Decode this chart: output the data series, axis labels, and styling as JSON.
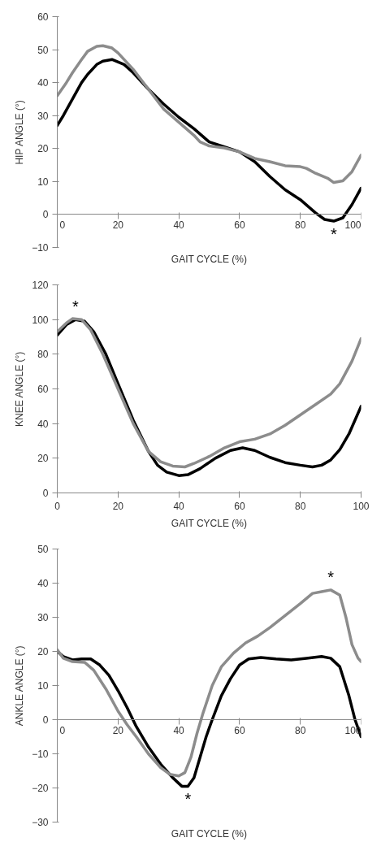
{
  "chart_data": [
    {
      "type": "line",
      "xlabel": "GAIT CYCLE (%)",
      "ylabel": "HIP ANGLE (°)",
      "xlim": [
        0,
        100
      ],
      "xticks": [
        0,
        20,
        40,
        60,
        80,
        100
      ],
      "ylim": [
        -10,
        60
      ],
      "yticks": [
        -10,
        0,
        10,
        20,
        30,
        40,
        50,
        60
      ],
      "series": [
        {
          "color": "#000000",
          "x": [
            0,
            2,
            5,
            8,
            10,
            13,
            15,
            18,
            22,
            25,
            30,
            35,
            40,
            45,
            50,
            55,
            60,
            65,
            70,
            75,
            80,
            85,
            88,
            91,
            94,
            97,
            100
          ],
          "values": [
            27,
            30,
            35,
            40,
            42.5,
            45.5,
            46.5,
            47,
            45.5,
            43,
            38,
            33.5,
            29.5,
            26,
            22,
            20.5,
            19,
            16,
            11.5,
            7.5,
            4.5,
            0.5,
            -1.5,
            -2,
            -1,
            3,
            8
          ]
        },
        {
          "color": "#8c8c8c",
          "x": [
            0,
            3,
            5,
            8,
            10,
            13,
            15,
            18,
            20,
            25,
            30,
            35,
            40,
            45,
            47,
            50,
            55,
            60,
            65,
            70,
            75,
            80,
            82,
            85,
            89,
            91,
            94,
            97,
            100
          ],
          "values": [
            36,
            40,
            43,
            47,
            49.5,
            51,
            51.2,
            50.5,
            49,
            44,
            38,
            32,
            28,
            24,
            22,
            20.8,
            20.2,
            19,
            17,
            16,
            14.8,
            14.5,
            14,
            12.5,
            11,
            9.7,
            10.2,
            13,
            18
          ]
        }
      ],
      "annotations": [
        {
          "text": "*",
          "x": 91,
          "y": -2
        }
      ]
    },
    {
      "type": "line",
      "xlabel": "GAIT CYCLE (%)",
      "ylabel": "KNEE ANGLE (°)",
      "xlim": [
        0,
        100
      ],
      "xticks": [
        0,
        20,
        40,
        60,
        80,
        100
      ],
      "ylim": [
        0,
        120
      ],
      "yticks": [
        0,
        20,
        40,
        60,
        80,
        100,
        120
      ],
      "series": [
        {
          "color": "#000000",
          "x": [
            0,
            3,
            6,
            9,
            12,
            16,
            20,
            25,
            30,
            33,
            36,
            40,
            43,
            47,
            52,
            57,
            61,
            65,
            70,
            75,
            80,
            84,
            87,
            90,
            93,
            96,
            100
          ],
          "values": [
            91,
            97,
            100,
            99,
            93,
            80,
            63,
            42,
            24,
            16,
            12,
            10,
            10.5,
            14,
            20,
            24.5,
            26,
            24.5,
            20.5,
            17.5,
            16,
            15,
            16,
            19,
            25,
            34,
            50
          ]
        },
        {
          "color": "#8c8c8c",
          "x": [
            0,
            3,
            5,
            8,
            11,
            15,
            20,
            25,
            30,
            34,
            38,
            42,
            45,
            50,
            55,
            60,
            65,
            70,
            75,
            80,
            85,
            90,
            93,
            97,
            100
          ],
          "values": [
            93,
            98,
            100.5,
            100,
            94,
            80,
            60,
            40,
            24,
            18,
            15.5,
            15,
            17,
            21,
            26,
            29.5,
            31,
            34,
            39,
            45,
            51,
            57,
            63,
            76,
            89
          ]
        }
      ],
      "annotations": [
        {
          "text": "*",
          "x": 6,
          "y": 100
        }
      ]
    },
    {
      "type": "line",
      "xlabel": "GAIT CYCLE (%)",
      "ylabel": "ANKLE ANGLE (°)",
      "xlim": [
        0,
        100
      ],
      "xticks": [
        0,
        20,
        40,
        60,
        80,
        100
      ],
      "ylim": [
        -30,
        50
      ],
      "yticks": [
        -30,
        -20,
        -10,
        0,
        10,
        20,
        30,
        40,
        50
      ],
      "series": [
        {
          "color": "#000000",
          "x": [
            0,
            2,
            5,
            8,
            11,
            14,
            17,
            20,
            23,
            26,
            30,
            34,
            38,
            41,
            43,
            45,
            47,
            49,
            51,
            54,
            57,
            60,
            63,
            67,
            72,
            77,
            82,
            87,
            90,
            93,
            96,
            98,
            100
          ],
          "values": [
            20,
            18.5,
            17.5,
            17.8,
            17.8,
            16,
            13,
            8.5,
            3.5,
            -2,
            -8,
            -13,
            -17,
            -19.5,
            -19.5,
            -17,
            -11,
            -5,
            0,
            7,
            12,
            16,
            17.8,
            18.2,
            17.8,
            17.5,
            18,
            18.5,
            18,
            15.5,
            7,
            0,
            -5
          ]
        },
        {
          "color": "#8c8c8c",
          "x": [
            0,
            2,
            5,
            9,
            12,
            16,
            20,
            23,
            26,
            30,
            34,
            37,
            40,
            42,
            44,
            46,
            48,
            51,
            54,
            58,
            62,
            66,
            70,
            75,
            80,
            84,
            87,
            90,
            93,
            95,
            97,
            99,
            100
          ],
          "values": [
            20.5,
            18,
            17,
            16.8,
            14.5,
            9,
            2.5,
            -1.5,
            -5,
            -10,
            -14,
            -16,
            -16.5,
            -15.5,
            -11,
            -4,
            2,
            10,
            15.5,
            19.5,
            22.5,
            24.5,
            27,
            30.5,
            34,
            37,
            37.5,
            38,
            36.5,
            30,
            22,
            18,
            17
          ]
        }
      ],
      "annotations": [
        {
          "text": "*",
          "x": 90,
          "y": 38
        },
        {
          "text": "*",
          "x": 43,
          "y": -19.5
        }
      ]
    }
  ]
}
